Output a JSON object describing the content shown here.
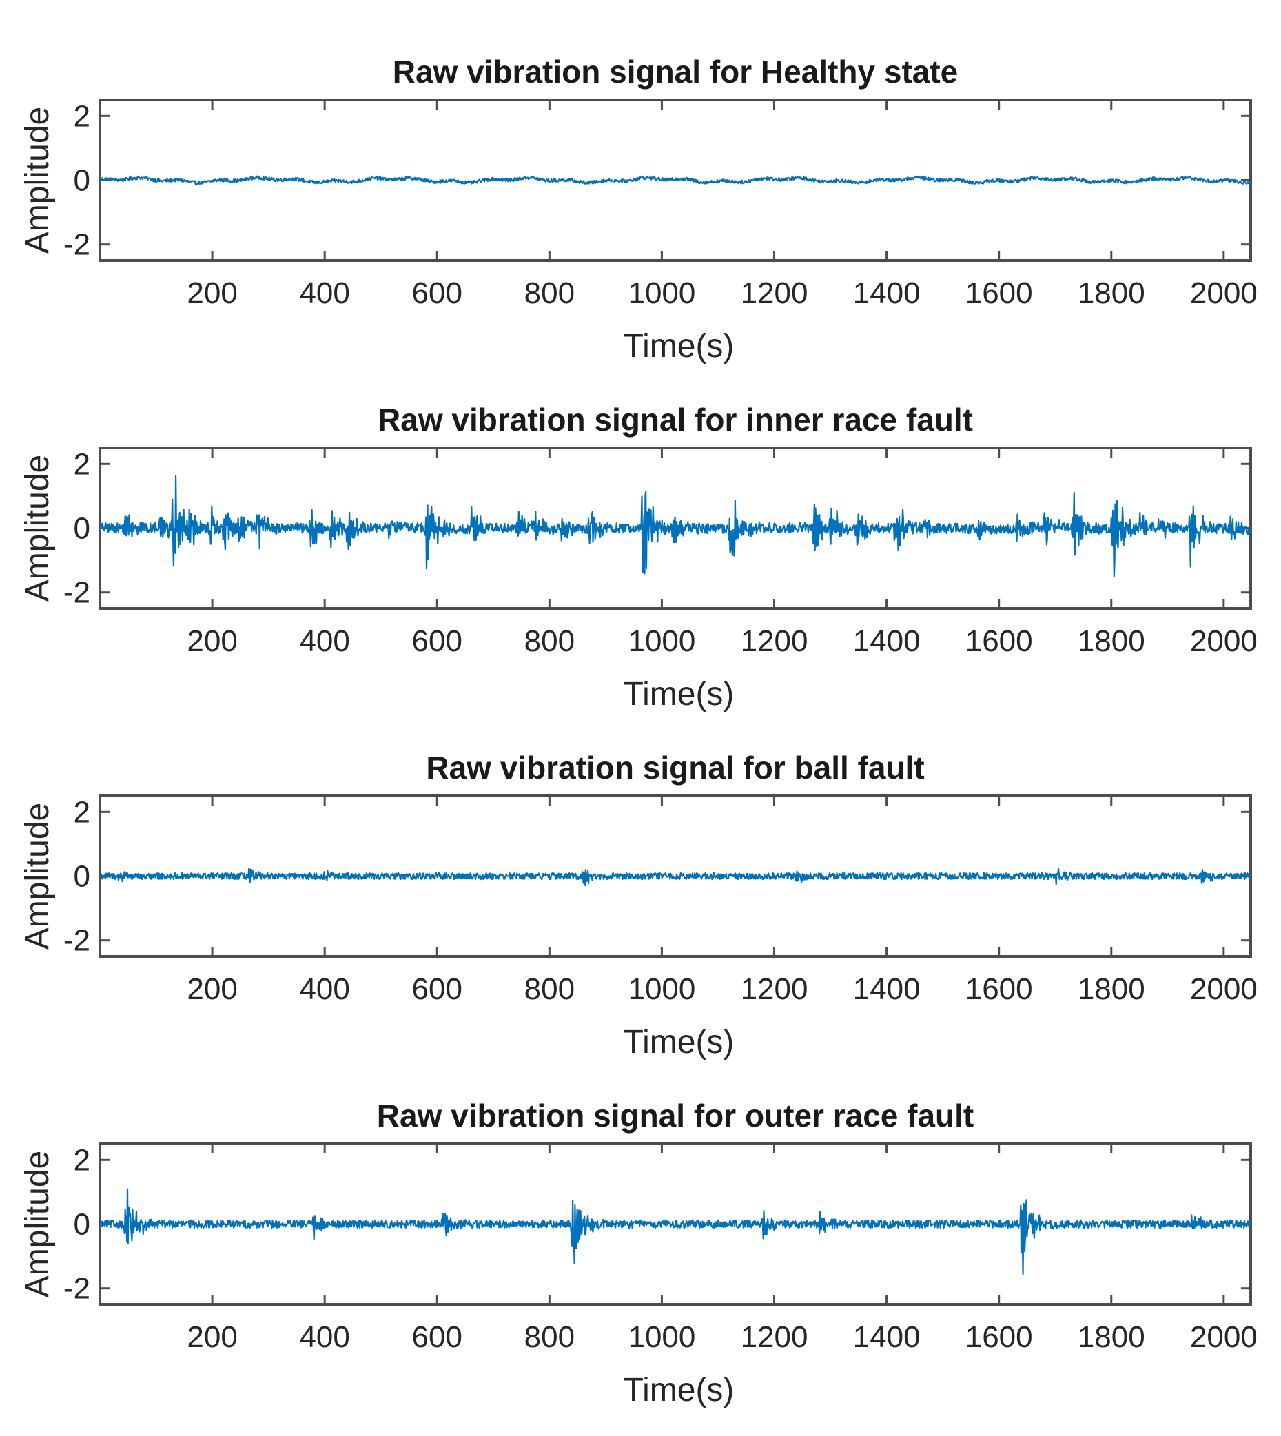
{
  "figure": {
    "signal_color": "#0072BD",
    "axis_color": "#4d4d4d"
  },
  "chart_data": [
    {
      "type": "line",
      "title": "Raw vibration signal for Healthy state",
      "xlabel": "Time(s)",
      "ylabel": "Amplitude",
      "xlim": [
        0,
        2048
      ],
      "ylim": [
        -2.5,
        2.5
      ],
      "xticks": [
        200,
        400,
        600,
        800,
        1000,
        1200,
        1400,
        1600,
        1800,
        2000
      ],
      "yticks": [
        -2,
        0,
        2
      ],
      "xtick_labels": [
        "200",
        "400",
        "600",
        "800",
        "1000",
        "1200",
        "1400",
        "1600",
        "1800",
        "2000"
      ],
      "ytick_labels": [
        "-2",
        "0",
        "2"
      ],
      "grid": false,
      "signal": {
        "n": 2048,
        "base_noise": 0.05,
        "drift": 0.05,
        "bursts": []
      }
    },
    {
      "type": "line",
      "title": "Raw vibration signal for inner race fault",
      "xlabel": "Time(s)",
      "ylabel": "Amplitude",
      "xlim": [
        0,
        2048
      ],
      "ylim": [
        -2.5,
        2.5
      ],
      "xticks": [
        200,
        400,
        600,
        800,
        1000,
        1200,
        1400,
        1600,
        1800,
        2000
      ],
      "yticks": [
        -2,
        0,
        2
      ],
      "xtick_labels": [
        "200",
        "400",
        "600",
        "800",
        "1000",
        "1200",
        "1400",
        "1600",
        "1800",
        "2000"
      ],
      "ytick_labels": [
        "-2",
        "0",
        "2"
      ],
      "grid": false,
      "signal": {
        "n": 2048,
        "base_noise": 0.15,
        "drift": 0.02,
        "bursts": [
          {
            "t": 45,
            "amp": 0.9
          },
          {
            "t": 105,
            "amp": 0.7
          },
          {
            "t": 130,
            "amp": 2.5
          },
          {
            "t": 160,
            "amp": 0.9
          },
          {
            "t": 195,
            "amp": 0.8
          },
          {
            "t": 220,
            "amp": 1.0
          },
          {
            "t": 245,
            "amp": 0.7
          },
          {
            "t": 280,
            "amp": 1.3
          },
          {
            "t": 375,
            "amp": 0.8
          },
          {
            "t": 410,
            "amp": 0.9
          },
          {
            "t": 440,
            "amp": 1.0
          },
          {
            "t": 515,
            "amp": 0.6
          },
          {
            "t": 580,
            "amp": 2.0
          },
          {
            "t": 660,
            "amp": 0.9
          },
          {
            "t": 740,
            "amp": 0.7
          },
          {
            "t": 775,
            "amp": 0.6
          },
          {
            "t": 820,
            "amp": 0.6
          },
          {
            "t": 870,
            "amp": 1.0
          },
          {
            "t": 965,
            "amp": 2.2
          },
          {
            "t": 1020,
            "amp": 0.7
          },
          {
            "t": 1120,
            "amp": 1.8
          },
          {
            "t": 1270,
            "amp": 1.2
          },
          {
            "t": 1300,
            "amp": 1.0
          },
          {
            "t": 1345,
            "amp": 0.9
          },
          {
            "t": 1415,
            "amp": 1.6
          },
          {
            "t": 1470,
            "amp": 0.8
          },
          {
            "t": 1560,
            "amp": 0.6
          },
          {
            "t": 1630,
            "amp": 0.6
          },
          {
            "t": 1680,
            "amp": 0.8
          },
          {
            "t": 1730,
            "amp": 1.6
          },
          {
            "t": 1800,
            "amp": 2.5
          },
          {
            "t": 1850,
            "amp": 0.8
          },
          {
            "t": 1880,
            "amp": 0.6
          },
          {
            "t": 1940,
            "amp": 1.5
          },
          {
            "t": 2010,
            "amp": 0.5
          }
        ]
      }
    },
    {
      "type": "line",
      "title": "Raw vibration signal for ball fault",
      "xlabel": "Time(s)",
      "ylabel": "Amplitude",
      "xlim": [
        0,
        2048
      ],
      "ylim": [
        -2.5,
        2.5
      ],
      "xticks": [
        200,
        400,
        600,
        800,
        1000,
        1200,
        1400,
        1600,
        1800,
        2000
      ],
      "yticks": [
        -2,
        0,
        2
      ],
      "xtick_labels": [
        "200",
        "400",
        "600",
        "800",
        "1000",
        "1200",
        "1400",
        "1600",
        "1800",
        "2000"
      ],
      "ytick_labels": [
        "-2",
        "0",
        "2"
      ],
      "grid": false,
      "signal": {
        "n": 2048,
        "base_noise": 0.1,
        "drift": 0.0,
        "bursts": [
          {
            "t": 30,
            "amp": 0.4
          },
          {
            "t": 265,
            "amp": 0.25
          },
          {
            "t": 400,
            "amp": 0.25
          },
          {
            "t": 860,
            "amp": 0.4
          },
          {
            "t": 1240,
            "amp": 0.3
          },
          {
            "t": 1700,
            "amp": 0.3
          },
          {
            "t": 1960,
            "amp": 0.25
          }
        ]
      }
    },
    {
      "type": "line",
      "title": "Raw vibration signal for outer race fault",
      "xlabel": "Time(s)",
      "ylabel": "Amplitude",
      "xlim": [
        0,
        2048
      ],
      "ylim": [
        -2.5,
        2.5
      ],
      "xticks": [
        200,
        400,
        600,
        800,
        1000,
        1200,
        1400,
        1600,
        1800,
        2000
      ],
      "yticks": [
        -2,
        0,
        2
      ],
      "xtick_labels": [
        "200",
        "400",
        "600",
        "800",
        "1000",
        "1200",
        "1400",
        "1600",
        "1800",
        "2000"
      ],
      "ytick_labels": [
        "-2",
        "0",
        "2"
      ],
      "grid": false,
      "signal": {
        "n": 2048,
        "base_noise": 0.12,
        "drift": 0.0,
        "bursts": [
          {
            "t": 45,
            "amp": 2.4
          },
          {
            "t": 380,
            "amp": 0.5
          },
          {
            "t": 610,
            "amp": 0.6
          },
          {
            "t": 840,
            "amp": 2.5
          },
          {
            "t": 1180,
            "amp": 0.6
          },
          {
            "t": 1280,
            "amp": 0.5
          },
          {
            "t": 1640,
            "amp": 2.5
          },
          {
            "t": 1940,
            "amp": 0.4
          }
        ]
      }
    }
  ]
}
